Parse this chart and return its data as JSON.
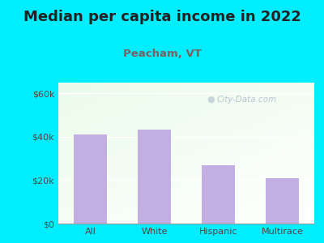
{
  "title": "Median per capita income in 2022",
  "subtitle": "Peacham, VT",
  "categories": [
    "All",
    "White",
    "Hispanic",
    "Multirace"
  ],
  "values": [
    41000,
    43500,
    27000,
    21000
  ],
  "bar_color": "#c2aee0",
  "outer_bg": "#00eeff",
  "title_color": "#222222",
  "subtitle_color": "#7a6060",
  "tick_label_color": "#5a4040",
  "yticks": [
    0,
    20000,
    40000,
    60000
  ],
  "ytick_labels": [
    "$0",
    "$20k",
    "$40k",
    "$60k"
  ],
  "ylim": [
    0,
    65000
  ],
  "watermark_text": "City-Data.com",
  "title_fontsize": 13,
  "subtitle_fontsize": 9.5
}
